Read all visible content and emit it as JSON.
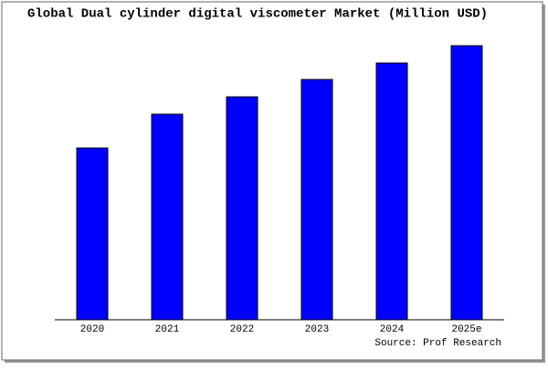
{
  "chart_data": {
    "type": "bar",
    "title": "Global Dual cylinder digital viscometer Market (Million USD)",
    "categories": [
      "2020",
      "2021",
      "2022",
      "2023",
      "2024",
      "2025e"
    ],
    "values": [
      188,
      225,
      244,
      263,
      281,
      300
    ],
    "color": "#0000ff",
    "ylim": [
      0,
      305
    ],
    "source": "Source: Prof Research"
  }
}
